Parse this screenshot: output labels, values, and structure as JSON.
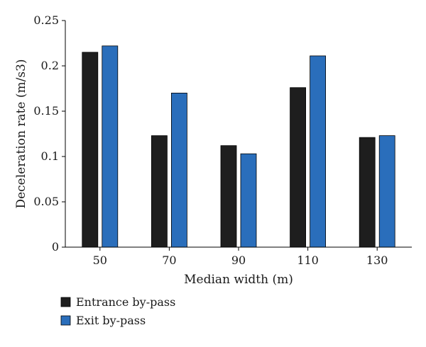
{
  "chart_data": {
    "type": "bar",
    "title": "",
    "xlabel": "Median width (m)",
    "ylabel": "Deceleration rate (m/s3)",
    "categories": [
      "50",
      "70",
      "90",
      "110",
      "130"
    ],
    "series": [
      {
        "name": "Entrance by-pass",
        "color": "#1e1e1e",
        "values": [
          0.215,
          0.123,
          0.112,
          0.176,
          0.121
        ]
      },
      {
        "name": "Exit by-pass",
        "color": "#2a6ebb",
        "values": [
          0.222,
          0.17,
          0.103,
          0.211,
          0.123
        ]
      }
    ],
    "ylim": [
      0,
      0.25
    ],
    "yticks": [
      "0",
      "0.05",
      "0.1",
      "0.15",
      "0.2",
      "0.25"
    ],
    "grid": false,
    "legend_position": "bottom-left"
  }
}
